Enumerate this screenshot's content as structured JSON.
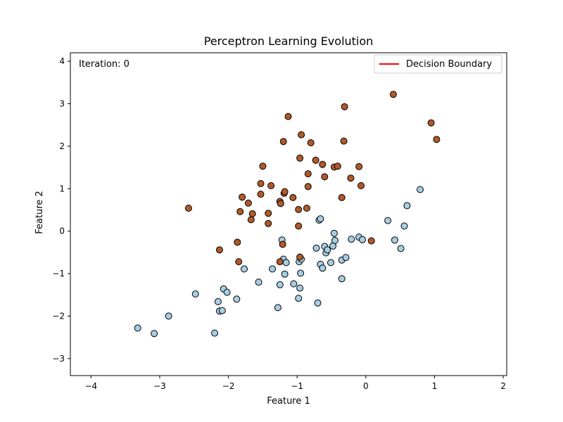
{
  "chart_data": {
    "type": "scatter",
    "title": "Perceptron Learning Evolution",
    "xlabel": "Feature 1",
    "ylabel": "Feature 2",
    "xlim": [
      -4.3,
      2.05
    ],
    "ylim": [
      -3.4,
      4.2
    ],
    "xticks": [
      -4,
      -3,
      -2,
      -1,
      0,
      1,
      2
    ],
    "yticks": [
      -3,
      -2,
      -1,
      0,
      1,
      2,
      3,
      4
    ],
    "annotation": "Iteration: 0",
    "grid": false,
    "legend_position": "top-right",
    "legend": [
      {
        "label": "Decision Boundary",
        "color": "#ff0000",
        "type": "line"
      }
    ],
    "series": [
      {
        "color": "#a6cee3",
        "points": [
          [
            -3.32,
            -2.28
          ],
          [
            -3.08,
            -2.41
          ],
          [
            -2.87,
            -2.0
          ],
          [
            -2.48,
            -1.48
          ],
          [
            -2.2,
            -2.4
          ],
          [
            -2.15,
            -1.66
          ],
          [
            -2.13,
            -1.88
          ],
          [
            -2.09,
            -1.87
          ],
          [
            -2.07,
            -1.36
          ],
          [
            -2.02,
            -1.44
          ],
          [
            -1.88,
            -1.6
          ],
          [
            -1.77,
            -0.89
          ],
          [
            -1.56,
            -1.2
          ],
          [
            -1.36,
            -0.89
          ],
          [
            -1.28,
            -1.8
          ],
          [
            -1.25,
            -1.26
          ],
          [
            -1.22,
            -0.21
          ],
          [
            -1.2,
            -0.66
          ],
          [
            -1.18,
            -1.01
          ],
          [
            -1.16,
            -0.74
          ],
          [
            -1.05,
            -1.24
          ],
          [
            -0.98,
            -1.58
          ],
          [
            -0.97,
            -0.72
          ],
          [
            -0.96,
            -1.34
          ],
          [
            -0.95,
            -0.99
          ],
          [
            -0.94,
            -0.66
          ],
          [
            -0.72,
            -0.4
          ],
          [
            -0.7,
            -1.69
          ],
          [
            -0.68,
            0.26
          ],
          [
            -0.66,
            0.29
          ],
          [
            -0.66,
            -0.78
          ],
          [
            -0.63,
            -0.87
          ],
          [
            -0.6,
            -0.36
          ],
          [
            -0.58,
            -0.51
          ],
          [
            -0.56,
            -0.44
          ],
          [
            -0.51,
            -0.74
          ],
          [
            -0.48,
            -0.35
          ],
          [
            -0.46,
            -0.05
          ],
          [
            -0.45,
            -0.22
          ],
          [
            -0.35,
            -1.12
          ],
          [
            -0.35,
            -0.68
          ],
          [
            -0.29,
            -0.62
          ],
          [
            -0.21,
            -0.19
          ],
          [
            -0.1,
            -0.14
          ],
          [
            -0.05,
            -0.2
          ],
          [
            0.32,
            0.25
          ],
          [
            0.42,
            -0.21
          ],
          [
            0.51,
            -0.41
          ],
          [
            0.56,
            0.12
          ],
          [
            0.6,
            0.6
          ],
          [
            0.79,
            0.98
          ]
        ]
      },
      {
        "color": "#b15928",
        "points": [
          [
            -2.58,
            0.54
          ],
          [
            -2.13,
            -0.44
          ],
          [
            -1.87,
            -0.26
          ],
          [
            -1.85,
            -0.72
          ],
          [
            -1.83,
            0.46
          ],
          [
            -1.8,
            0.8
          ],
          [
            -1.71,
            0.66
          ],
          [
            -1.67,
            0.27
          ],
          [
            -1.65,
            0.41
          ],
          [
            -1.53,
            0.87
          ],
          [
            -1.53,
            1.12
          ],
          [
            -1.5,
            1.53
          ],
          [
            -1.42,
            0.18
          ],
          [
            -1.42,
            0.42
          ],
          [
            -1.38,
            1.07
          ],
          [
            -1.25,
            -0.72
          ],
          [
            -1.25,
            0.7
          ],
          [
            -1.24,
            0.65
          ],
          [
            -1.21,
            -0.31
          ],
          [
            -1.2,
            2.11
          ],
          [
            -1.19,
            0.89
          ],
          [
            -1.18,
            0.93
          ],
          [
            -1.13,
            2.7
          ],
          [
            -1.06,
            0.79
          ],
          [
            -0.98,
            0.51
          ],
          [
            -0.98,
            0.12
          ],
          [
            -0.96,
            -0.61
          ],
          [
            -0.96,
            1.72
          ],
          [
            -0.94,
            2.27
          ],
          [
            -0.86,
            0.54
          ],
          [
            -0.84,
            1.05
          ],
          [
            -0.84,
            1.35
          ],
          [
            -0.8,
            2.08
          ],
          [
            -0.73,
            1.67
          ],
          [
            -0.63,
            1.57
          ],
          [
            -0.6,
            1.28
          ],
          [
            -0.46,
            1.51
          ],
          [
            -0.41,
            1.53
          ],
          [
            -0.35,
            0.79
          ],
          [
            -0.32,
            2.12
          ],
          [
            -0.31,
            2.93
          ],
          [
            -0.22,
            1.25
          ],
          [
            -0.1,
            1.52
          ],
          [
            -0.07,
            1.07
          ],
          [
            0.08,
            -0.23
          ],
          [
            0.4,
            3.22
          ],
          [
            0.95,
            2.55
          ],
          [
            1.03,
            2.16
          ]
        ]
      }
    ]
  }
}
